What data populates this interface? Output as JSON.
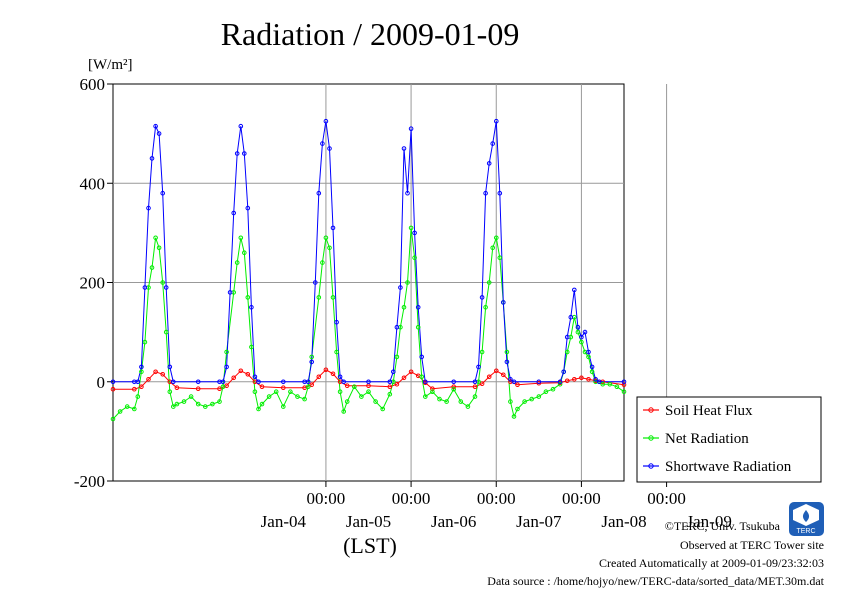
{
  "chart_data": {
    "type": "line",
    "title": "Radiation / 2009-01-09",
    "ylabel": "[W/m²]",
    "xlabel": "(LST)",
    "ylim": [
      -200,
      600
    ],
    "y_ticks": [
      "600",
      "400",
      "200",
      "0",
      "-200"
    ],
    "y_tick_values": [
      600,
      400,
      200,
      0,
      -200
    ],
    "x_range_hours": [
      -36,
      108
    ],
    "x_time_ticks": [
      {
        "hour": 24,
        "label": "00:00"
      },
      {
        "hour": 48,
        "label": "00:00"
      },
      {
        "hour": 72,
        "label": "00:00"
      },
      {
        "hour": 96,
        "label": "00:00"
      },
      {
        "hour": 120,
        "label": "00:00"
      }
    ],
    "x_date_labels": [
      {
        "hour": 12,
        "label": "Jan-04"
      },
      {
        "hour": 36,
        "label": "Jan-05"
      },
      {
        "hour": 60,
        "label": "Jan-06"
      },
      {
        "hour": 84,
        "label": "Jan-07"
      },
      {
        "hour": 108,
        "label": "Jan-08"
      },
      {
        "hour": 132,
        "label": "Jan-09"
      }
    ],
    "grid": true,
    "legend_position": "right",
    "series": [
      {
        "name": "Soil Heat Flux",
        "color": "#ff0000",
        "points": [
          [
            0,
            -15
          ],
          [
            6,
            -15
          ],
          [
            8,
            -10
          ],
          [
            10,
            5
          ],
          [
            12,
            20
          ],
          [
            14,
            15
          ],
          [
            16,
            0
          ],
          [
            18,
            -12
          ],
          [
            24,
            -14
          ],
          [
            30,
            -14
          ],
          [
            32,
            -8
          ],
          [
            34,
            8
          ],
          [
            36,
            22
          ],
          [
            38,
            15
          ],
          [
            40,
            0
          ],
          [
            42,
            -10
          ],
          [
            48,
            -12
          ],
          [
            54,
            -12
          ],
          [
            56,
            -6
          ],
          [
            58,
            10
          ],
          [
            60,
            24
          ],
          [
            62,
            16
          ],
          [
            64,
            0
          ],
          [
            66,
            -8
          ],
          [
            72,
            -8
          ],
          [
            78,
            -10
          ],
          [
            80,
            -5
          ],
          [
            82,
            8
          ],
          [
            84,
            20
          ],
          [
            86,
            12
          ],
          [
            88,
            -2
          ],
          [
            90,
            -14
          ],
          [
            96,
            -10
          ],
          [
            102,
            -10
          ],
          [
            104,
            -4
          ],
          [
            106,
            10
          ],
          [
            108,
            22
          ],
          [
            110,
            14
          ],
          [
            112,
            0
          ],
          [
            114,
            -6
          ],
          [
            120,
            -3
          ],
          [
            126,
            -2
          ],
          [
            128,
            2
          ],
          [
            130,
            5
          ],
          [
            132,
            8
          ],
          [
            134,
            5
          ],
          [
            136,
            2
          ],
          [
            138,
            0
          ],
          [
            144,
            -6
          ]
        ]
      },
      {
        "name": "Net Radiation",
        "color": "#00ee00",
        "points": [
          [
            0,
            -75
          ],
          [
            2,
            -60
          ],
          [
            4,
            -50
          ],
          [
            6,
            -55
          ],
          [
            7,
            -30
          ],
          [
            8,
            20
          ],
          [
            9,
            80
          ],
          [
            10,
            190
          ],
          [
            11,
            230
          ],
          [
            12,
            290
          ],
          [
            13,
            270
          ],
          [
            14,
            200
          ],
          [
            15,
            100
          ],
          [
            16,
            -20
          ],
          [
            17,
            -50
          ],
          [
            18,
            -45
          ],
          [
            20,
            -40
          ],
          [
            22,
            -30
          ],
          [
            24,
            -45
          ],
          [
            26,
            -50
          ],
          [
            28,
            -45
          ],
          [
            30,
            -40
          ],
          [
            31,
            -10
          ],
          [
            32,
            60
          ],
          [
            34,
            180
          ],
          [
            35,
            240
          ],
          [
            36,
            290
          ],
          [
            37,
            260
          ],
          [
            38,
            170
          ],
          [
            39,
            70
          ],
          [
            40,
            -20
          ],
          [
            41,
            -55
          ],
          [
            42,
            -45
          ],
          [
            44,
            -30
          ],
          [
            46,
            -20
          ],
          [
            48,
            -50
          ],
          [
            50,
            -20
          ],
          [
            52,
            -30
          ],
          [
            54,
            -35
          ],
          [
            55,
            -10
          ],
          [
            56,
            50
          ],
          [
            58,
            170
          ],
          [
            59,
            240
          ],
          [
            60,
            290
          ],
          [
            61,
            270
          ],
          [
            62,
            170
          ],
          [
            63,
            60
          ],
          [
            64,
            -20
          ],
          [
            65,
            -60
          ],
          [
            66,
            -40
          ],
          [
            68,
            -10
          ],
          [
            70,
            -30
          ],
          [
            72,
            -20
          ],
          [
            74,
            -40
          ],
          [
            76,
            -55
          ],
          [
            78,
            -25
          ],
          [
            79,
            0
          ],
          [
            80,
            50
          ],
          [
            81,
            110
          ],
          [
            82,
            150
          ],
          [
            83,
            200
          ],
          [
            84,
            310
          ],
          [
            85,
            250
          ],
          [
            86,
            110
          ],
          [
            87,
            10
          ],
          [
            88,
            -30
          ],
          [
            90,
            -20
          ],
          [
            92,
            -35
          ],
          [
            94,
            -40
          ],
          [
            96,
            -15
          ],
          [
            98,
            -40
          ],
          [
            100,
            -50
          ],
          [
            102,
            -30
          ],
          [
            103,
            0
          ],
          [
            104,
            60
          ],
          [
            105,
            150
          ],
          [
            106,
            200
          ],
          [
            107,
            270
          ],
          [
            108,
            290
          ],
          [
            109,
            250
          ],
          [
            110,
            160
          ],
          [
            111,
            60
          ],
          [
            112,
            -40
          ],
          [
            113,
            -70
          ],
          [
            114,
            -55
          ],
          [
            116,
            -40
          ],
          [
            118,
            -35
          ],
          [
            120,
            -30
          ],
          [
            122,
            -20
          ],
          [
            124,
            -15
          ],
          [
            126,
            -5
          ],
          [
            127,
            20
          ],
          [
            128,
            60
          ],
          [
            129,
            90
          ],
          [
            130,
            130
          ],
          [
            131,
            100
          ],
          [
            132,
            80
          ],
          [
            133,
            60
          ],
          [
            134,
            50
          ],
          [
            135,
            20
          ],
          [
            136,
            0
          ],
          [
            138,
            -5
          ],
          [
            140,
            -5
          ],
          [
            142,
            -10
          ],
          [
            144,
            -20
          ]
        ]
      },
      {
        "name": "Shortwave Radiation",
        "color": "#0000ff",
        "points": [
          [
            0,
            0
          ],
          [
            6,
            0
          ],
          [
            7,
            0
          ],
          [
            8,
            30
          ],
          [
            9,
            190
          ],
          [
            10,
            350
          ],
          [
            11,
            450
          ],
          [
            12,
            515
          ],
          [
            13,
            500
          ],
          [
            14,
            380
          ],
          [
            15,
            190
          ],
          [
            16,
            30
          ],
          [
            17,
            0
          ],
          [
            24,
            0
          ],
          [
            30,
            0
          ],
          [
            31,
            0
          ],
          [
            32,
            30
          ],
          [
            33,
            180
          ],
          [
            34,
            340
          ],
          [
            35,
            460
          ],
          [
            36,
            515
          ],
          [
            37,
            460
          ],
          [
            38,
            350
          ],
          [
            39,
            150
          ],
          [
            40,
            10
          ],
          [
            41,
            0
          ],
          [
            48,
            0
          ],
          [
            54,
            0
          ],
          [
            55,
            0
          ],
          [
            56,
            40
          ],
          [
            57,
            200
          ],
          [
            58,
            380
          ],
          [
            59,
            480
          ],
          [
            60,
            525
          ],
          [
            61,
            470
          ],
          [
            62,
            310
          ],
          [
            63,
            120
          ],
          [
            64,
            10
          ],
          [
            65,
            0
          ],
          [
            72,
            0
          ],
          [
            78,
            0
          ],
          [
            79,
            20
          ],
          [
            80,
            110
          ],
          [
            81,
            190
          ],
          [
            82,
            470
          ],
          [
            83,
            380
          ],
          [
            84,
            510
          ],
          [
            85,
            300
          ],
          [
            86,
            150
          ],
          [
            87,
            50
          ],
          [
            88,
            0
          ],
          [
            96,
            0
          ],
          [
            102,
            0
          ],
          [
            103,
            30
          ],
          [
            104,
            170
          ],
          [
            105,
            380
          ],
          [
            106,
            440
          ],
          [
            107,
            480
          ],
          [
            108,
            525
          ],
          [
            109,
            380
          ],
          [
            110,
            160
          ],
          [
            111,
            40
          ],
          [
            112,
            5
          ],
          [
            113,
            0
          ],
          [
            120,
            0
          ],
          [
            126,
            0
          ],
          [
            127,
            20
          ],
          [
            128,
            90
          ],
          [
            129,
            130
          ],
          [
            130,
            185
          ],
          [
            131,
            110
          ],
          [
            132,
            90
          ],
          [
            133,
            100
          ],
          [
            134,
            60
          ],
          [
            135,
            30
          ],
          [
            136,
            5
          ],
          [
            137,
            0
          ],
          [
            144,
            0
          ]
        ]
      }
    ]
  },
  "footer": {
    "copyright": "©TERC, Univ. Tsukuba",
    "observed": "Observed at TERC Tower site",
    "created": "Created Automatically at 2009-01-09/23:32:03",
    "source": "Data source : /home/hojyo/new/TERC-data/sorted_data/MET.30m.dat"
  },
  "logo": {
    "text": "TERC",
    "color": "#1f5fb7"
  }
}
